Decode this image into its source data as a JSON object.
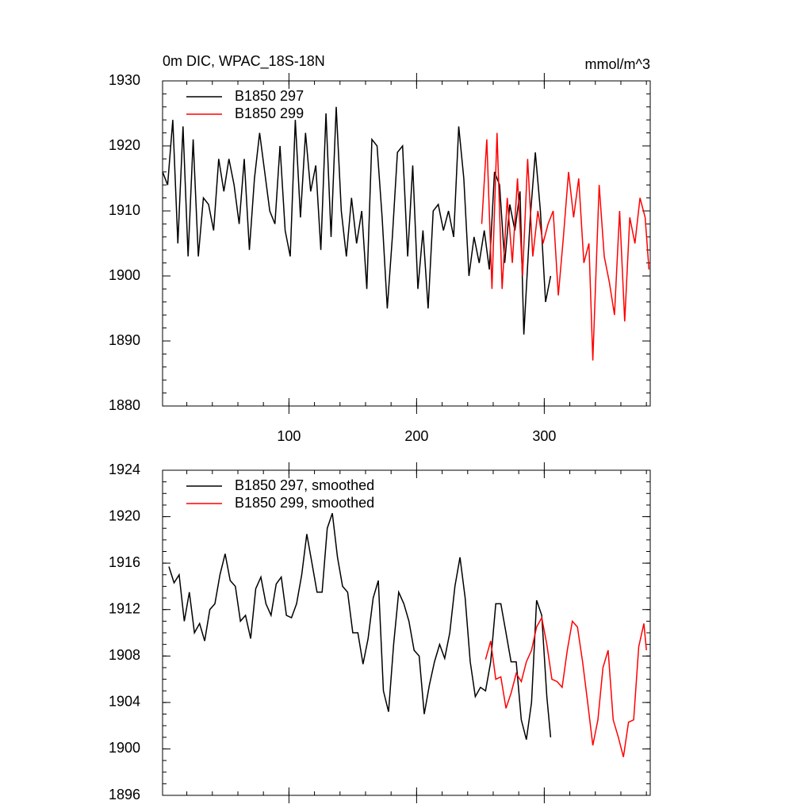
{
  "chart_data": [
    {
      "type": "line",
      "title": "0m DIC, WPAC_18S-18N",
      "units": "mmol/m^3",
      "xlim": [
        1,
        383
      ],
      "xticks": [
        100,
        200,
        300
      ],
      "xminor_step": 20,
      "xtick_labels": true,
      "ylim": [
        1880,
        1930
      ],
      "yticks": [
        1880,
        1890,
        1900,
        1910,
        1920,
        1930
      ],
      "yminor_step": 2,
      "series": [
        {
          "name": "B1850 297",
          "color": "#000000",
          "x": [
            1,
            5,
            9,
            13,
            17,
            21,
            25,
            29,
            33,
            37,
            41,
            45,
            49,
            53,
            57,
            61,
            65,
            69,
            73,
            77,
            81,
            85,
            89,
            93,
            97,
            101,
            105,
            109,
            113,
            117,
            121,
            125,
            129,
            133,
            137,
            141,
            145,
            149,
            153,
            157,
            161,
            165,
            169,
            173,
            177,
            181,
            185,
            189,
            193,
            197,
            201,
            205,
            209,
            213,
            217,
            221,
            225,
            229,
            233,
            237,
            241,
            245,
            249,
            253,
            257,
            261,
            265,
            269,
            273,
            277,
            281,
            284,
            289,
            293,
            297,
            301,
            305
          ],
          "values": [
            1916,
            1914,
            1924,
            1905,
            1923,
            1903,
            1921,
            1903,
            1912,
            1911,
            1907,
            1918,
            1913,
            1918,
            1914,
            1908,
            1918,
            1904,
            1915,
            1922,
            1916,
            1910,
            1908,
            1920,
            1907,
            1903,
            1924,
            1909,
            1922,
            1913,
            1917,
            1904,
            1925,
            1906,
            1926,
            1910,
            1903,
            1912,
            1905,
            1910,
            1898,
            1921,
            1920,
            1909,
            1895,
            1906,
            1919,
            1920,
            1903,
            1917,
            1898,
            1907,
            1895,
            1910,
            1911,
            1907,
            1910,
            1906,
            1923,
            1915,
            1900,
            1906,
            1902,
            1907,
            1901,
            1916,
            1914,
            1902,
            1911,
            1907,
            1913,
            1891,
            1909,
            1919,
            1910,
            1896,
            1900
          ]
        },
        {
          "name": "B1850 299",
          "color": "#ff0000",
          "x": [
            251,
            255,
            259,
            263,
            267,
            271,
            275,
            279,
            283,
            287,
            291,
            295,
            299,
            303,
            307,
            311,
            315,
            319,
            323,
            327,
            331,
            335,
            338,
            343,
            347,
            351,
            355,
            359,
            363,
            367,
            371,
            375,
            379,
            382
          ],
          "values": [
            1908,
            1921,
            1898,
            1922,
            1898,
            1912,
            1902,
            1915,
            1900,
            1918,
            1903,
            1910,
            1905,
            1908,
            1910,
            1897,
            1906,
            1916,
            1909,
            1915,
            1902,
            1905,
            1887,
            1914,
            1903,
            1899,
            1894,
            1910,
            1893,
            1909,
            1905,
            1912,
            1909,
            1901
          ]
        }
      ]
    },
    {
      "type": "line",
      "xlim": [
        1,
        383
      ],
      "xticks": [
        100,
        200,
        300
      ],
      "xminor_step": 20,
      "xtick_labels": false,
      "ylim": [
        1896,
        1924
      ],
      "yticks": [
        1896,
        1900,
        1904,
        1908,
        1912,
        1916,
        1920,
        1924
      ],
      "yminor_step": 1,
      "series": [
        {
          "name": "B1850 297, smoothed",
          "color": "#000000",
          "x": [
            6,
            10,
            14,
            18,
            22,
            26,
            30,
            34,
            38,
            42,
            46,
            50,
            54,
            58,
            62,
            66,
            70,
            74,
            78,
            82,
            86,
            90,
            94,
            98,
            102,
            106,
            110,
            114,
            118,
            122,
            126,
            130,
            134,
            138,
            142,
            146,
            150,
            154,
            158,
            162,
            166,
            170,
            174,
            178,
            182,
            186,
            190,
            194,
            198,
            202,
            206,
            210,
            214,
            218,
            222,
            226,
            230,
            234,
            238,
            242,
            246,
            250,
            254,
            258,
            262,
            266,
            270,
            274,
            278,
            282,
            286,
            290,
            294,
            298,
            302,
            305
          ],
          "values": [
            1915.7,
            1914.3,
            1915,
            1911,
            1913.5,
            1910,
            1910.8,
            1909.3,
            1912,
            1912.5,
            1915,
            1916.8,
            1914.5,
            1914,
            1911,
            1911.5,
            1909.5,
            1913.8,
            1914.8,
            1912.5,
            1911.5,
            1914.2,
            1914.8,
            1911.5,
            1911.3,
            1912.5,
            1915,
            1918.5,
            1916,
            1913.5,
            1913.5,
            1919,
            1920.3,
            1916.5,
            1914,
            1913.5,
            1910,
            1910,
            1907.3,
            1909.5,
            1913,
            1914.5,
            1905,
            1903.2,
            1909,
            1913.5,
            1912.5,
            1911,
            1908.5,
            1908,
            1903,
            1905.5,
            1907.5,
            1909,
            1907.8,
            1910,
            1914,
            1916.5,
            1913,
            1907.5,
            1904.5,
            1905.3,
            1905,
            1907.5,
            1912.5,
            1912.5,
            1910,
            1907.5,
            1907.5,
            1902.5,
            1900.8,
            1904,
            1912.8,
            1911.5,
            1904.5,
            1901
          ]
        },
        {
          "name": "B1850 299, smoothed",
          "color": "#ff0000",
          "x": [
            254,
            258,
            262,
            266,
            270,
            274,
            278,
            282,
            286,
            290,
            294,
            298,
            302,
            306,
            310,
            314,
            318,
            322,
            326,
            330,
            334,
            338,
            342,
            346,
            350,
            354,
            358,
            362,
            366,
            370,
            374,
            378,
            380
          ],
          "values": [
            1907.7,
            1909.3,
            1906,
            1906.2,
            1903.5,
            1904.8,
            1906.5,
            1905.8,
            1907.5,
            1908.5,
            1910.5,
            1911.3,
            1909,
            1906,
            1905.8,
            1905.3,
            1908.5,
            1911,
            1910.5,
            1907.5,
            1904,
            1900.3,
            1902.5,
            1907,
            1908.5,
            1902.5,
            1901,
            1899.3,
            1902.3,
            1902.5,
            1908.8,
            1910.8,
            1908.5
          ]
        }
      ]
    }
  ]
}
